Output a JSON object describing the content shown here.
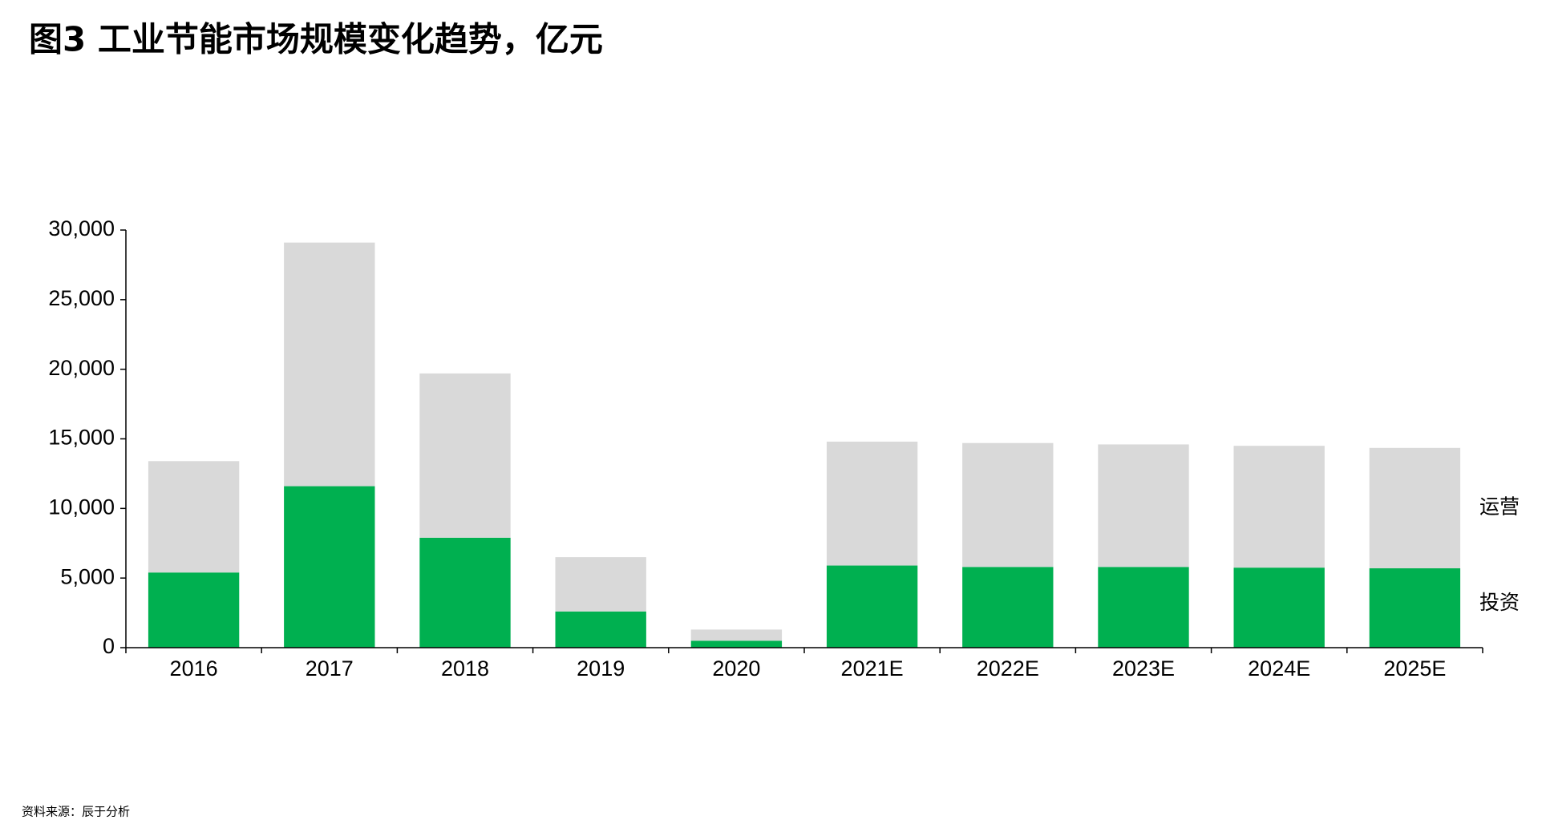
{
  "chart_data": {
    "type": "stacked_bar",
    "title": "图3 工业节能市场规模变化趋势，亿元",
    "categories": [
      "2016",
      "2017",
      "2018",
      "2019",
      "2020",
      "2021E",
      "2022E",
      "2023E",
      "2024E",
      "2025E"
    ],
    "series": [
      {
        "name": "投资",
        "color": "#00b050",
        "values": [
          5400,
          11600,
          7900,
          2600,
          500,
          5900,
          5800,
          5800,
          5750,
          5700
        ]
      },
      {
        "name": "运营",
        "color": "#d9d9d9",
        "values": [
          8000,
          17500,
          11800,
          3900,
          800,
          8900,
          8900,
          8800,
          8750,
          8650
        ]
      }
    ],
    "ylim": [
      0,
      30000
    ],
    "yticks": [
      0,
      {
        "value": 5000,
        "label": "5,000"
      },
      {
        "value": 10000,
        "label": "10,000"
      },
      {
        "value": 15000,
        "label": "15,000"
      },
      {
        "value": 20000,
        "label": "20,000"
      },
      {
        "value": 25000,
        "label": "25,000"
      },
      {
        "value": 30000,
        "label": "30,000"
      }
    ],
    "grid": false,
    "source": "资料来源：辰于分析"
  }
}
